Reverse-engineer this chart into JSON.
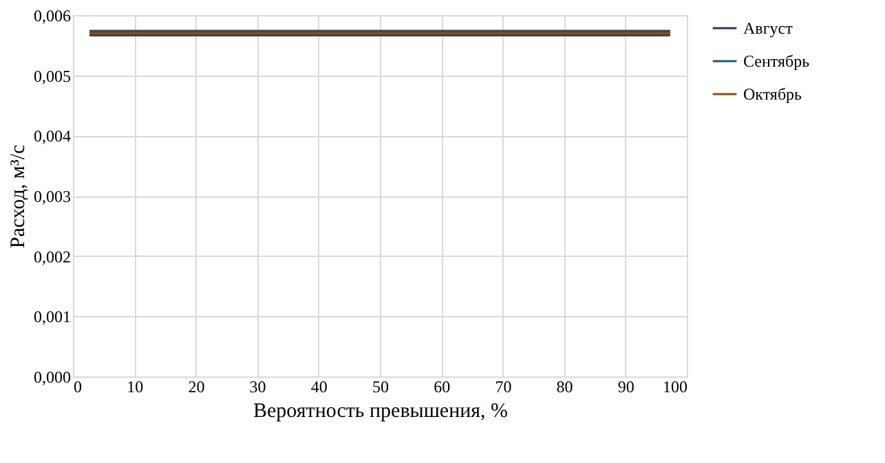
{
  "chart_data": {
    "type": "line",
    "xlabel": "Вероятность превышения, %",
    "ylabel": "Расход, м³/с",
    "series": [
      {
        "name": "Август",
        "color": "#403152",
        "values": [
          0.0057,
          0.0057
        ]
      },
      {
        "name": "Сентябрь",
        "color": "#215968",
        "values": [
          0.0057,
          0.0057
        ]
      },
      {
        "name": "Октябрь",
        "color": "#984807",
        "values": [
          0.0057,
          0.0057
        ]
      }
    ],
    "x": [
      2.7,
      97.3
    ],
    "xlim": [
      0,
      100
    ],
    "xticks": [
      0,
      10,
      20,
      30,
      40,
      50,
      60,
      70,
      80,
      90,
      100
    ],
    "ylim": [
      0,
      0.006
    ],
    "yticks": [
      {
        "value": 0,
        "label": "0,000"
      },
      {
        "value": 0.001,
        "label": "0,001"
      },
      {
        "value": 0.002,
        "label": "0,002"
      },
      {
        "value": 0.003,
        "label": "0,003"
      },
      {
        "value": 0.004,
        "label": "0,004"
      },
      {
        "value": 0.005,
        "label": "0,005"
      },
      {
        "value": 0.006,
        "label": "0,006"
      }
    ],
    "grid": true,
    "legend": "right",
    "marker": "none",
    "line_style": "solid"
  }
}
